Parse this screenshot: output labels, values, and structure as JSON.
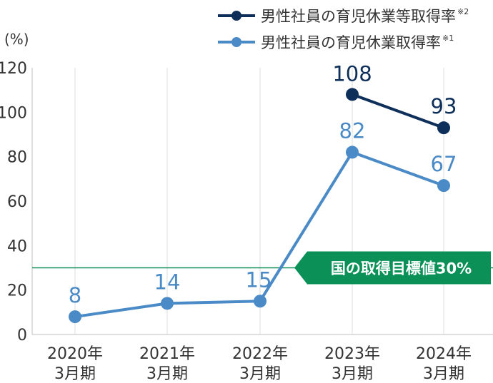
{
  "chart_data": {
    "type": "line",
    "title": "",
    "ylabel": "(%)",
    "xlabel": "",
    "ylim": [
      0,
      120
    ],
    "yticks": [
      0,
      20,
      40,
      60,
      80,
      100,
      120
    ],
    "categories": [
      {
        "year": "2020年",
        "period": "3月期"
      },
      {
        "year": "2021年",
        "period": "3月期"
      },
      {
        "year": "2022年",
        "period": "3月期"
      },
      {
        "year": "2023年",
        "period": "3月期"
      },
      {
        "year": "2024年",
        "period": "3月期"
      }
    ],
    "series": [
      {
        "name": "男性社員の育児休業等取得率",
        "note": "※2",
        "color": "#0e2f5a",
        "values": [
          null,
          null,
          null,
          108,
          93
        ]
      },
      {
        "name": "男性社員の育児休業取得率",
        "note": "※1",
        "color": "#4a8ac6",
        "values": [
          8,
          14,
          15,
          82,
          67
        ]
      }
    ],
    "target": {
      "label": "国の取得目標値30%",
      "value": 30,
      "color": "#0b9157"
    },
    "grid": "vertical",
    "legend": "top-right"
  }
}
